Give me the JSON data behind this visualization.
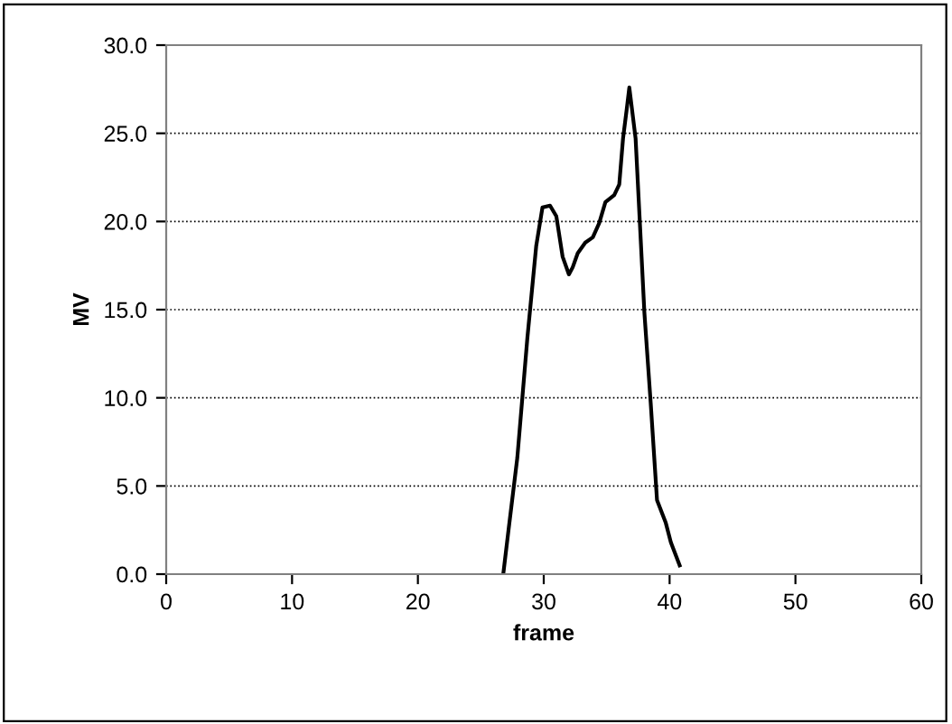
{
  "chart_data": {
    "type": "line",
    "xlabel": "frame",
    "ylabel": "MV",
    "xlim": [
      0,
      60
    ],
    "xticks": [
      0,
      10,
      20,
      30,
      40,
      50,
      60
    ],
    "ylim": [
      0,
      30
    ],
    "yticks": [
      {
        "value": 0,
        "label": "0.0"
      },
      {
        "value": 5,
        "label": "5.0"
      },
      {
        "value": 10,
        "label": "10.0"
      },
      {
        "value": 15,
        "label": "15.0"
      },
      {
        "value": 20,
        "label": "20.0"
      },
      {
        "value": 25,
        "label": "25.0"
      },
      {
        "value": 30,
        "label": "30.0"
      }
    ],
    "grid": "y",
    "marker": "none",
    "line_style": "solid",
    "series": [
      {
        "color": "#000000",
        "x": [
          26.8,
          27.2,
          27.9,
          28.7,
          29.4,
          29.9,
          30.5,
          31.0,
          31.5,
          32.0,
          32.3,
          32.7,
          33.3,
          33.9,
          34.4,
          34.9,
          35.6,
          36.0,
          36.3,
          36.6,
          36.8,
          37.3,
          38.0,
          38.5,
          39.0,
          39.7,
          40.1,
          40.8
        ],
        "values": [
          0.1,
          2.5,
          6.6,
          13.4,
          18.6,
          20.8,
          20.9,
          20.3,
          18.0,
          17.0,
          17.4,
          18.2,
          18.8,
          19.1,
          19.9,
          21.1,
          21.5,
          22.1,
          24.7,
          26.4,
          27.6,
          24.7,
          14.8,
          9.7,
          4.2,
          2.9,
          1.8,
          0.5
        ]
      }
    ]
  }
}
